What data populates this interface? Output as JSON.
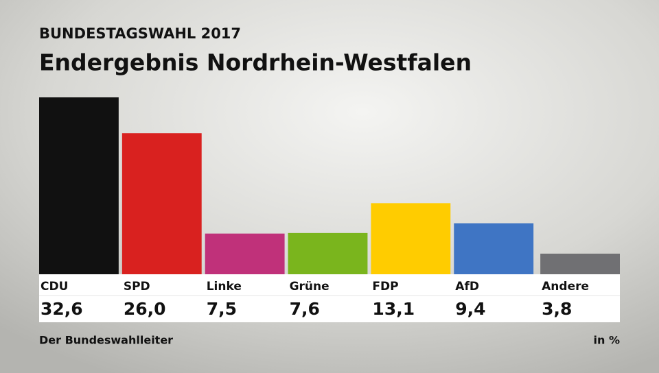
{
  "chart_data": {
    "type": "bar",
    "subtitle": "BUNDESTAGSWAHL 2017",
    "title": "Endergebnis Nordrhein-Westfalen",
    "categories": [
      "CDU",
      "SPD",
      "Linke",
      "Grüne",
      "FDP",
      "AfD",
      "Andere"
    ],
    "values": [
      32.6,
      26.0,
      7.5,
      7.6,
      13.1,
      9.4,
      3.8
    ],
    "value_labels": [
      "32,6",
      "26,0",
      "7,5",
      "7,6",
      "13,1",
      "9,4",
      "3,8"
    ],
    "colors": [
      "#111111",
      "#d9211f",
      "#c0317a",
      "#7ab51d",
      "#ffcc00",
      "#3f75c4",
      "#707073"
    ],
    "source": "Der Bundeswahlleiter",
    "unit": "in %"
  }
}
